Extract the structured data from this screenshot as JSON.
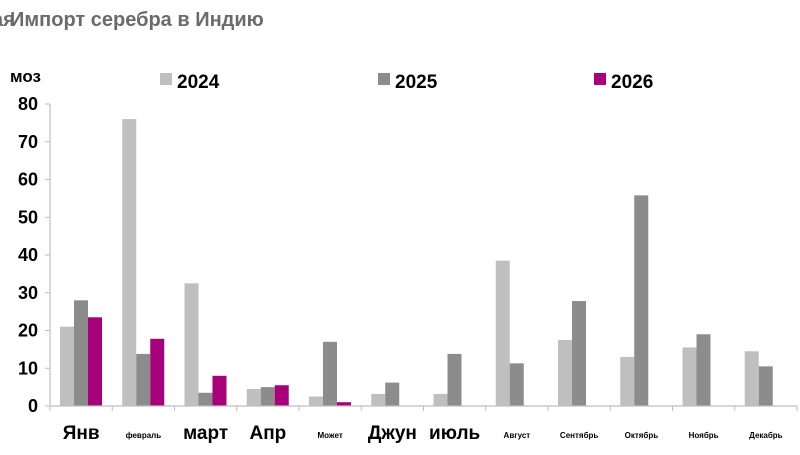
{
  "chart_data": {
    "type": "bar",
    "title": "Импорт серебра в Индию",
    "title_prefix": "ая",
    "ylabel": "моз",
    "xlabel": "",
    "ylim": [
      0,
      80
    ],
    "yticks": [
      0,
      10,
      20,
      30,
      40,
      50,
      60,
      70,
      80
    ],
    "grid": false,
    "legend_position": "top",
    "categories": [
      "Янв",
      "февраль",
      "март",
      "Апр",
      "Может",
      "Джун",
      "июль",
      "Август",
      "Сентябрь",
      "Октябрь",
      "Ноябрь",
      "Декабрь"
    ],
    "large_labels": [
      true,
      false,
      true,
      true,
      false,
      true,
      true,
      false,
      false,
      false,
      false,
      false
    ],
    "series": [
      {
        "name": "2024",
        "color": "#bfbfbf",
        "values": [
          21,
          76,
          32.5,
          4.5,
          2.5,
          3.2,
          3.2,
          38.5,
          17.5,
          13,
          15.5,
          14.5
        ]
      },
      {
        "name": "2025",
        "color": "#8c8c8c",
        "values": [
          28,
          13.8,
          3.5,
          5,
          17,
          6.2,
          13.8,
          11.3,
          27.8,
          55.8,
          19,
          10.5
        ]
      },
      {
        "name": "2026",
        "color": "#a6007a",
        "values": [
          23.5,
          17.8,
          8,
          5.5,
          1,
          null,
          null,
          null,
          null,
          null,
          null,
          null
        ]
      }
    ]
  }
}
